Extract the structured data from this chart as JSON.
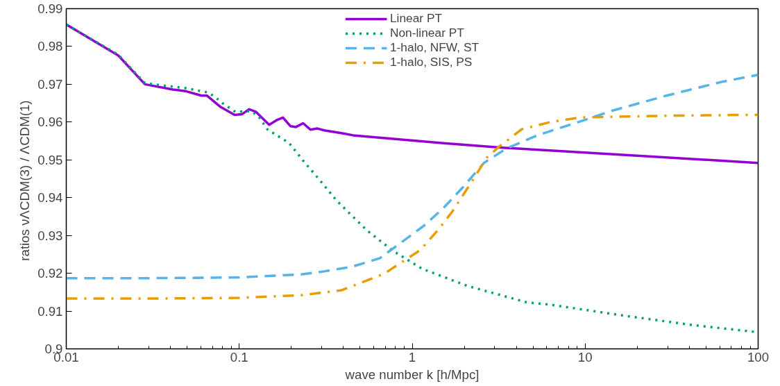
{
  "chart_data": {
    "type": "line",
    "xlabel": "wave number k [h/Mpc]",
    "ylabel": "ratios  νΛCDM(3) / ΛCDM(1)",
    "log": "x",
    "xlim": [
      0.01,
      100
    ],
    "ylim": [
      0.9,
      0.99
    ],
    "xticks": [
      0.01,
      0.1,
      1,
      10,
      100
    ],
    "yticks": [
      0.9,
      0.91,
      0.92,
      0.93,
      0.94,
      0.95,
      0.96,
      0.97,
      0.98,
      0.99
    ],
    "grid": false,
    "legend": "top",
    "series": [
      {
        "name": "Linear PT",
        "color": "#9400d3",
        "line_style": "solid",
        "x": [
          0.01,
          0.02,
          0.0285,
          0.0414,
          0.0487,
          0.0605,
          0.065,
          0.078,
          0.094,
          0.104,
          0.114,
          0.125,
          0.149,
          0.166,
          0.179,
          0.198,
          0.213,
          0.234,
          0.258,
          0.283,
          0.31,
          0.4,
          0.455,
          1.52,
          3.33,
          6.28,
          100
        ],
        "values": [
          0.9858,
          0.9776,
          0.97,
          0.9686,
          0.9682,
          0.967,
          0.967,
          0.964,
          0.9619,
          0.9621,
          0.9634,
          0.9627,
          0.9593,
          0.9606,
          0.9612,
          0.9589,
          0.9587,
          0.9597,
          0.958,
          0.9583,
          0.9578,
          0.957,
          0.9565,
          0.9544,
          0.9532,
          0.9525,
          0.9492
        ]
      },
      {
        "name": "Non-linear PT",
        "color": "#009e73",
        "line_style": "dotted",
        "x": [
          0.01,
          0.02,
          0.0285,
          0.0388,
          0.0487,
          0.0665,
          0.073,
          0.08,
          0.095,
          0.117,
          0.129,
          0.146,
          0.194,
          0.24,
          0.276,
          0.366,
          0.546,
          0.77,
          1.14,
          2.07,
          4.6,
          6.28,
          16.1,
          41.7,
          100
        ],
        "values": [
          0.9858,
          0.9778,
          0.9703,
          0.9695,
          0.969,
          0.9678,
          0.9665,
          0.965,
          0.9627,
          0.9629,
          0.9616,
          0.958,
          0.9545,
          0.9492,
          0.946,
          0.9392,
          0.9314,
          0.926,
          0.9212,
          0.9167,
          0.9123,
          0.9117,
          0.9089,
          0.9063,
          0.9044
        ]
      },
      {
        "name": "1-halo, NFW, ST",
        "color": "#56b4e9",
        "line_style": "dashed",
        "x": [
          0.01,
          0.03,
          0.1,
          0.228,
          0.31,
          0.455,
          0.65,
          0.88,
          1.17,
          1.52,
          1.95,
          2.6,
          3.5,
          5.3,
          10,
          14.3,
          29,
          61,
          100
        ],
        "values": [
          0.9187,
          0.9187,
          0.9189,
          0.9197,
          0.9205,
          0.9218,
          0.924,
          0.9284,
          0.9326,
          0.9373,
          0.9426,
          0.9492,
          0.953,
          0.9565,
          0.9606,
          0.963,
          0.9669,
          0.9706,
          0.9725
        ]
      },
      {
        "name": "1-halo, SIS, PS",
        "color": "#e69f00",
        "line_style": "dashdot",
        "x": [
          0.01,
          0.03,
          0.1,
          0.228,
          0.39,
          0.69,
          1.11,
          1.42,
          1.71,
          2.2,
          2.7,
          3.2,
          4.3,
          6.3,
          9.3,
          13.8,
          33,
          85,
          100
        ],
        "values": [
          0.9133,
          0.9133,
          0.9135,
          0.9142,
          0.9155,
          0.9199,
          0.9261,
          0.9316,
          0.9364,
          0.9441,
          0.9506,
          0.9536,
          0.9581,
          0.96,
          0.9612,
          0.9614,
          0.9617,
          0.9619,
          0.9619
        ]
      }
    ]
  }
}
